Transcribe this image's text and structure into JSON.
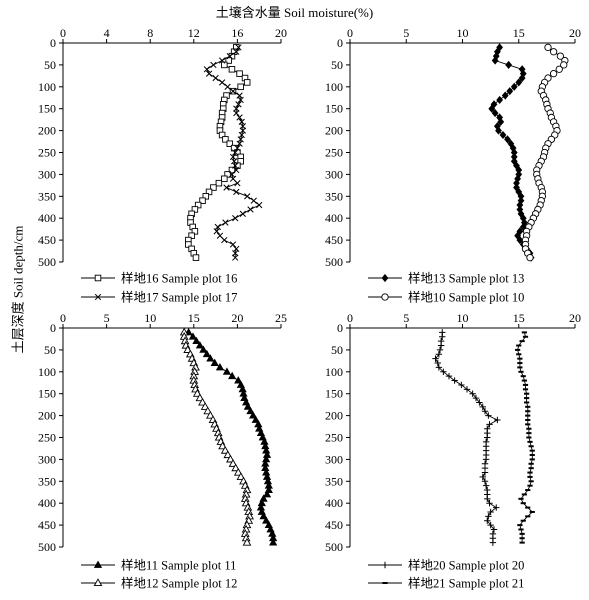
{
  "figure": {
    "top_axis_title": "土壤含水量 Soil moisture(%)",
    "y_axis_title": "土层深度 Soil depth/cm"
  },
  "chart_data": [
    {
      "type": "line",
      "panel": "top-left",
      "xlim": [
        0,
        20
      ],
      "xticks": [
        0,
        4,
        8,
        12,
        16,
        20
      ],
      "ylim": [
        0,
        500
      ],
      "yticks": [
        0,
        50,
        100,
        150,
        200,
        250,
        300,
        350,
        400,
        450,
        500
      ],
      "y": [
        10,
        20,
        30,
        40,
        50,
        60,
        70,
        80,
        90,
        100,
        110,
        120,
        130,
        140,
        150,
        160,
        170,
        180,
        190,
        200,
        210,
        220,
        230,
        240,
        250,
        260,
        270,
        280,
        290,
        300,
        310,
        320,
        330,
        340,
        350,
        360,
        370,
        380,
        390,
        400,
        410,
        420,
        430,
        440,
        450,
        460,
        470,
        480,
        490
      ],
      "series": [
        {
          "name": "样地16 Sample plot 16",
          "marker": "square",
          "values": [
            15.9,
            15.7,
            15.5,
            15.2,
            14.8,
            15.5,
            16.2,
            16.7,
            16.9,
            16.3,
            15.6,
            15.0,
            14.8,
            14.7,
            14.7,
            14.6,
            14.6,
            14.5,
            14.4,
            14.4,
            14.6,
            14.9,
            15.3,
            15.7,
            16.0,
            16.3,
            16.3,
            16.0,
            15.5,
            15.1,
            14.8,
            14.3,
            13.8,
            13.4,
            13.1,
            12.8,
            12.4,
            12.1,
            11.8,
            11.7,
            11.7,
            11.9,
            12.1,
            11.8,
            11.5,
            11.5,
            11.8,
            12.0,
            12.2
          ]
        },
        {
          "name": "样地17 Sample plot 17",
          "marker": "x",
          "values": [
            16.1,
            15.9,
            15.3,
            14.6,
            13.8,
            13.2,
            13.4,
            14.0,
            14.6,
            15.1,
            15.6,
            16.2,
            16.3,
            16.1,
            15.9,
            15.9,
            16.2,
            16.4,
            16.5,
            16.5,
            16.4,
            16.3,
            16.2,
            16.0,
            15.8,
            15.6,
            15.7,
            15.8,
            15.9,
            15.5,
            15.6,
            16.0,
            15.0,
            15.9,
            16.9,
            17.5,
            18.0,
            17.2,
            16.5,
            15.8,
            14.9,
            14.2,
            14.1,
            14.4,
            14.8,
            15.6,
            15.9,
            15.8,
            15.8
          ]
        }
      ],
      "legend_placement": "bottom"
    },
    {
      "type": "line",
      "panel": "top-right",
      "xlim": [
        0,
        20
      ],
      "xticks": [
        0,
        5,
        10,
        15,
        20
      ],
      "ylim": [
        0,
        500
      ],
      "yticks": [
        0,
        50,
        100,
        150,
        200,
        250,
        300,
        350,
        400,
        450,
        500
      ],
      "y": [
        10,
        20,
        30,
        40,
        50,
        60,
        70,
        80,
        90,
        100,
        110,
        120,
        130,
        140,
        150,
        160,
        170,
        180,
        190,
        200,
        210,
        220,
        230,
        240,
        250,
        260,
        270,
        280,
        290,
        300,
        310,
        320,
        330,
        340,
        350,
        360,
        370,
        380,
        390,
        400,
        410,
        420,
        430,
        440,
        450,
        460,
        470,
        480,
        490
      ],
      "series": [
        {
          "name": "样地13 Sample plot 13",
          "marker": "diamond-filled",
          "values": [
            13.3,
            13.1,
            13.0,
            12.9,
            14.1,
            15.3,
            15.4,
            15.3,
            15.0,
            14.6,
            14.2,
            13.8,
            13.3,
            12.8,
            12.6,
            12.9,
            13.3,
            13.4,
            13.1,
            13.2,
            13.6,
            14.0,
            14.3,
            14.5,
            14.6,
            14.6,
            14.6,
            14.8,
            15.0,
            15.0,
            14.9,
            14.8,
            14.8,
            15.0,
            15.2,
            15.2,
            15.1,
            15.1,
            15.2,
            15.4,
            15.5,
            15.4,
            15.1,
            14.9,
            15.1,
            15.4,
            15.7,
            16.0,
            16.1
          ]
        },
        {
          "name": "样地10 Sample plot 10",
          "marker": "circle-open",
          "values": [
            17.6,
            18.1,
            18.7,
            19.1,
            19.0,
            18.6,
            18.1,
            17.6,
            17.3,
            17.1,
            17.0,
            17.2,
            17.4,
            17.5,
            17.6,
            17.8,
            17.9,
            18.1,
            18.3,
            18.4,
            18.2,
            17.9,
            17.6,
            17.4,
            17.3,
            17.2,
            17.0,
            16.8,
            16.6,
            16.6,
            16.7,
            16.8,
            17.0,
            17.1,
            17.1,
            17.0,
            16.9,
            16.7,
            16.5,
            16.3,
            16.1,
            15.9,
            15.7,
            15.7,
            15.6,
            15.6,
            15.6,
            15.8,
            16.0
          ]
        }
      ],
      "legend_placement": "bottom"
    },
    {
      "type": "line",
      "panel": "bottom-left",
      "xlim": [
        0,
        25
      ],
      "xticks": [
        0,
        5,
        10,
        15,
        20,
        25
      ],
      "ylim": [
        0,
        500
      ],
      "yticks": [
        0,
        50,
        100,
        150,
        200,
        250,
        300,
        350,
        400,
        450,
        500
      ],
      "y": [
        10,
        20,
        30,
        40,
        50,
        60,
        70,
        80,
        90,
        100,
        110,
        120,
        130,
        140,
        150,
        160,
        170,
        180,
        190,
        200,
        210,
        220,
        230,
        240,
        250,
        260,
        270,
        280,
        290,
        300,
        310,
        320,
        330,
        340,
        350,
        360,
        370,
        380,
        390,
        400,
        410,
        420,
        430,
        440,
        450,
        460,
        470,
        480,
        490
      ],
      "series": [
        {
          "name": "样地11 Sample plot 11",
          "marker": "triangle-filled",
          "values": [
            14.4,
            14.9,
            15.3,
            15.7,
            16.1,
            16.5,
            16.9,
            17.4,
            18.0,
            18.8,
            19.4,
            20.1,
            20.4,
            20.6,
            20.7,
            20.8,
            21.0,
            21.2,
            21.5,
            21.8,
            22.1,
            22.4,
            22.5,
            22.7,
            22.9,
            23.1,
            23.2,
            23.3,
            23.4,
            23.3,
            23.2,
            23.2,
            23.3,
            23.4,
            23.5,
            23.6,
            23.6,
            23.4,
            23.0,
            22.8,
            22.7,
            22.8,
            23.0,
            23.3,
            23.6,
            23.8,
            24.0,
            24.1,
            24.1
          ]
        },
        {
          "name": "样地12 Sample plot 12",
          "marker": "triangle-open",
          "values": [
            13.9,
            13.9,
            14.0,
            14.1,
            14.3,
            14.6,
            14.8,
            15.0,
            15.2,
            15.1,
            15.0,
            15.0,
            15.1,
            15.2,
            15.4,
            15.7,
            16.0,
            16.3,
            16.6,
            16.9,
            17.2,
            17.4,
            17.6,
            17.8,
            17.9,
            18.1,
            18.3,
            18.6,
            18.9,
            19.2,
            19.5,
            19.8,
            20.1,
            20.4,
            20.7,
            20.9,
            21.1,
            21.0,
            20.9,
            21.0,
            21.2,
            21.3,
            21.4,
            21.3,
            21.1,
            21.0,
            20.9,
            21.0,
            21.1
          ]
        }
      ],
      "legend_placement": "bottom"
    },
    {
      "type": "line",
      "panel": "bottom-right",
      "xlim": [
        0,
        20
      ],
      "xticks": [
        0,
        5,
        10,
        15,
        20
      ],
      "ylim": [
        0,
        500
      ],
      "yticks": [
        0,
        50,
        100,
        150,
        200,
        250,
        300,
        350,
        400,
        450,
        500
      ],
      "y": [
        10,
        20,
        30,
        40,
        50,
        60,
        70,
        80,
        90,
        100,
        110,
        120,
        130,
        140,
        150,
        160,
        170,
        180,
        190,
        200,
        210,
        220,
        230,
        240,
        250,
        260,
        270,
        280,
        290,
        300,
        310,
        320,
        330,
        340,
        350,
        360,
        370,
        380,
        390,
        400,
        410,
        420,
        430,
        440,
        450,
        460,
        470,
        480,
        490
      ],
      "series": [
        {
          "name": "样地20 Sample plot 20",
          "marker": "plus",
          "values": [
            8.2,
            8.2,
            8.1,
            8.1,
            8.0,
            7.9,
            7.6,
            7.8,
            7.9,
            8.3,
            8.8,
            9.3,
            9.9,
            10.4,
            10.9,
            11.2,
            11.5,
            11.8,
            12.0,
            12.3,
            13.1,
            12.4,
            12.2,
            12.2,
            12.2,
            12.1,
            12.1,
            12.1,
            12.1,
            12.1,
            12.0,
            12.0,
            12.0,
            11.8,
            12.0,
            12.1,
            12.2,
            12.2,
            12.2,
            12.4,
            13.0,
            12.5,
            12.3,
            12.2,
            12.5,
            12.8,
            12.7,
            12.7,
            12.7
          ]
        },
        {
          "name": "样地21 Sample plot 21",
          "marker": "dash",
          "values": [
            15.5,
            15.6,
            15.3,
            15.0,
            14.9,
            15.0,
            15.1,
            15.1,
            15.1,
            15.2,
            15.4,
            15.5,
            15.6,
            15.6,
            15.7,
            15.7,
            15.7,
            15.8,
            15.8,
            15.8,
            15.8,
            15.8,
            15.9,
            15.9,
            15.9,
            16.0,
            16.1,
            16.2,
            16.2,
            16.2,
            16.1,
            16.1,
            16.0,
            16.0,
            16.1,
            16.0,
            15.8,
            15.5,
            15.2,
            15.4,
            15.8,
            16.2,
            15.8,
            15.4,
            15.1,
            15.2,
            15.3,
            15.3,
            15.3
          ]
        }
      ],
      "legend_placement": "bottom"
    }
  ]
}
